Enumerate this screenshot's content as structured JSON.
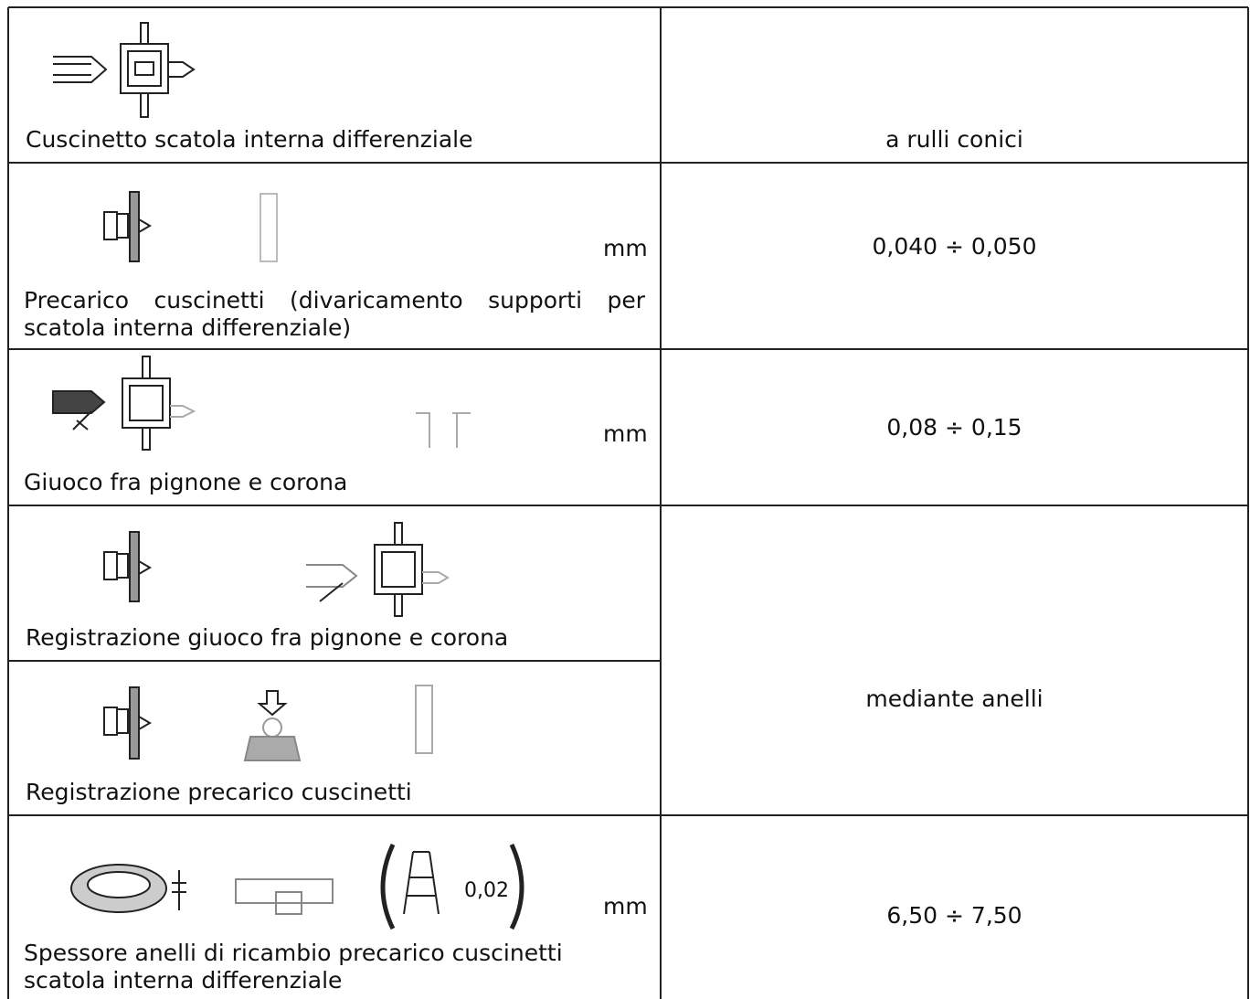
{
  "table": {
    "rows": [
      {
        "description": "Cuscinetto scatola interna differenziale",
        "value": "a rulli conici"
      },
      {
        "description": "Precarico cuscinetti (divaricamento supporti per scatola interna differenziale)",
        "unit": "mm",
        "value": "0,040 ÷ 0,050"
      },
      {
        "description": "Giuoco fra pignone e corona",
        "unit": "mm",
        "value": "0,08 ÷ 0,15"
      },
      {
        "description": "Registrazione giuoco fra pignone e corona",
        "value": "mediante anelli"
      },
      {
        "description": "Registrazione precarico cuscinetti"
      },
      {
        "description": "Spessore anelli di ricambio precarico cuscinetti scatola interna differenziale",
        "unit": "mm",
        "value": "6,50 ÷ 7,50",
        "step": "0,02"
      }
    ]
  }
}
